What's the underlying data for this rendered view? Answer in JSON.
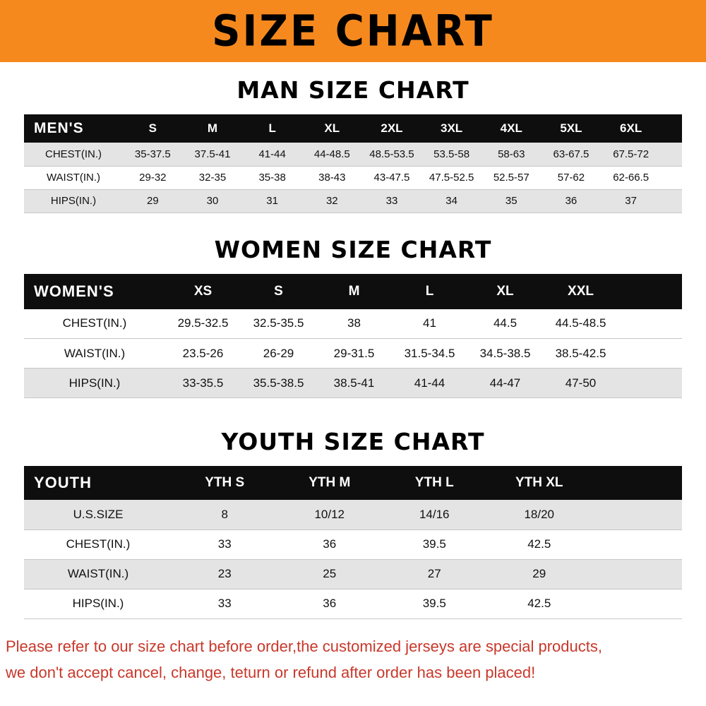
{
  "banner": {
    "title": "SIZE CHART",
    "bg_color": "#f6891e"
  },
  "sections": [
    {
      "id": "men",
      "heading": "MAN SIZE CHART",
      "table": {
        "header": [
          "MEN'S",
          "S",
          "M",
          "L",
          "XL",
          "2XL",
          "3XL",
          "4XL",
          "5XL",
          "6XL"
        ],
        "rows": [
          [
            "CHEST(IN.)",
            "35-37.5",
            "37.5-41",
            "41-44",
            "44-48.5",
            "48.5-53.5",
            "53.5-58",
            "58-63",
            "63-67.5",
            "67.5-72"
          ],
          [
            "WAIST(IN.)",
            "29-32",
            "32-35",
            "35-38",
            "38-43",
            "43-47.5",
            "47.5-52.5",
            "52.5-57",
            "57-62",
            "62-66.5"
          ],
          [
            "HIPS(IN.)",
            "29",
            "30",
            "31",
            "32",
            "33",
            "34",
            "35",
            "36",
            "37"
          ]
        ]
      }
    },
    {
      "id": "women",
      "heading": "WOMEN SIZE CHART",
      "table": {
        "header": [
          "WOMEN'S",
          "XS",
          "S",
          "M",
          "L",
          "XL",
          "XXL"
        ],
        "rows": [
          [
            "CHEST(IN.)",
            "29.5-32.5",
            "32.5-35.5",
            "38",
            "41",
            "44.5",
            "44.5-48.5"
          ],
          [
            "WAIST(IN.)",
            "23.5-26",
            "26-29",
            "29-31.5",
            "31.5-34.5",
            "34.5-38.5",
            "38.5-42.5"
          ],
          [
            "HIPS(IN.)",
            "33-35.5",
            "35.5-38.5",
            "38.5-41",
            "41-44",
            "44-47",
            "47-50"
          ]
        ]
      }
    },
    {
      "id": "youth",
      "heading": "YOUTH SIZE CHART",
      "table": {
        "header": [
          "YOUTH",
          "YTH S",
          "YTH M",
          "YTH L",
          "YTH XL"
        ],
        "rows": [
          [
            "U.S.SIZE",
            "8",
            "10/12",
            "14/16",
            "18/20"
          ],
          [
            "CHEST(IN.)",
            "33",
            "36",
            "39.5",
            "42.5"
          ],
          [
            "WAIST(IN.)",
            "23",
            "25",
            "27",
            "29"
          ],
          [
            "HIPS(IN.)",
            "33",
            "36",
            "39.5",
            "42.5"
          ]
        ]
      }
    }
  ],
  "footer": {
    "lines": [
      "Please refer to our size chart before order,the customized jerseys are special products,",
      "we don't accept cancel, change, teturn or refund after order has been placed!"
    ],
    "text_color": "#c8382b"
  },
  "colors": {
    "banner_bg": "#f6891e",
    "table_header_bg": "#0e0e0e",
    "row_stripe": "#e4e4e4",
    "notice_red": "#c8382b"
  }
}
